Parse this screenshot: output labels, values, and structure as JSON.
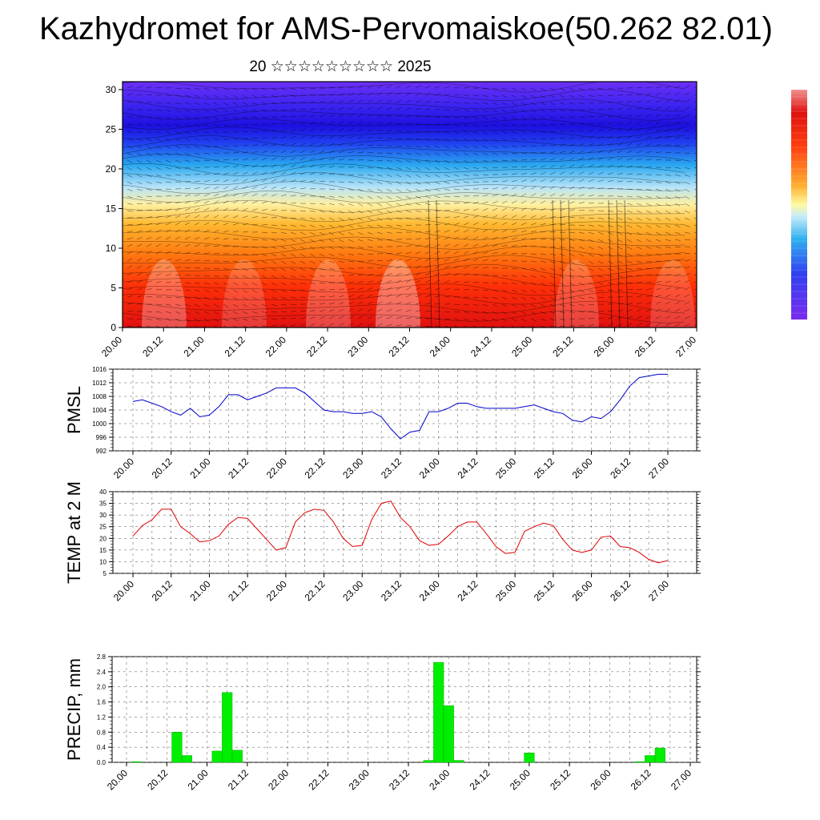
{
  "title": "Kazhydromet for AMS-Pervomaiskoe(50.262 82.01)",
  "subtitle": "20 ☆☆☆☆☆☆☆☆☆ 2025",
  "x_tick_labels": [
    "20.00",
    "20.12",
    "21.00",
    "21.12",
    "22.00",
    "22.12",
    "23.00",
    "23.12",
    "24.00",
    "24.12",
    "25.00",
    "25.12",
    "26.00",
    "26.12",
    "27.00"
  ],
  "chart_data": [
    {
      "type": "heatmap",
      "y_ticks": [
        0,
        5,
        10,
        15,
        20,
        25,
        30
      ],
      "ylim": [
        0,
        31
      ],
      "x_ticks": [
        "20.00",
        "20.12",
        "21.00",
        "21.12",
        "22.00",
        "22.12",
        "23.00",
        "23.12",
        "24.00",
        "24.12",
        "25.00",
        "25.12",
        "26.00",
        "26.12",
        "27.00"
      ],
      "colorbar": "rainbow"
    },
    {
      "type": "line",
      "ylabel": "PMSL",
      "ylim": [
        992,
        1016
      ],
      "y_ticks": [
        992,
        996,
        1000,
        1004,
        1008,
        1012,
        1016
      ],
      "x": [
        0,
        3,
        6,
        9,
        12,
        15,
        18,
        21,
        24,
        27,
        30,
        33,
        36,
        39,
        42,
        45,
        48,
        51,
        54,
        57,
        60,
        63,
        66,
        69,
        72,
        75,
        78,
        81,
        84,
        87,
        90,
        93,
        96,
        99,
        102,
        105,
        108,
        111,
        114,
        117,
        120,
        123,
        126,
        129,
        132,
        135,
        138,
        141,
        144,
        147,
        150,
        153,
        156,
        159,
        162,
        165,
        168
      ],
      "series": [
        {
          "values": [
            1006.5,
            1007,
            1006,
            1005,
            1003.5,
            1002.5,
            1004.5,
            1002,
            1002.5,
            1005,
            1008.5,
            1008.5,
            1007,
            1008,
            1009,
            1010.5,
            1010.5,
            1010.5,
            1009,
            1006.5,
            1004,
            1003.5,
            1003.5,
            1003,
            1003,
            1003.5,
            1002,
            998.5,
            995.5,
            997.5,
            998,
            1003.5,
            1003.5,
            1004.5,
            1006,
            1006,
            1005,
            1004.5,
            1004.5,
            1004.5,
            1004.5,
            1005,
            1005.5,
            1004.5,
            1003.5,
            1003,
            1001,
            1000.5,
            1002,
            1001.5,
            1003.5,
            1007,
            1011,
            1013.5,
            1014,
            1014.5,
            1014.5
          ]
        }
      ]
    },
    {
      "type": "line",
      "ylabel": "TEMP at 2 M",
      "ylim": [
        5,
        40
      ],
      "y_ticks": [
        5,
        10,
        15,
        20,
        25,
        30,
        35,
        40
      ],
      "x": [
        0,
        3,
        6,
        9,
        12,
        15,
        18,
        21,
        24,
        27,
        30,
        33,
        36,
        39,
        42,
        45,
        48,
        51,
        54,
        57,
        60,
        63,
        66,
        69,
        72,
        75,
        78,
        81,
        84,
        87,
        90,
        93,
        96,
        99,
        102,
        105,
        108,
        111,
        114,
        117,
        120,
        123,
        126,
        129,
        132,
        135,
        138,
        141,
        144,
        147,
        150,
        153,
        156,
        159,
        162,
        165,
        168
      ],
      "series": [
        {
          "values": [
            21,
            25.5,
            28,
            32.5,
            32.5,
            25,
            22,
            18.5,
            19,
            21,
            26,
            29,
            28.5,
            24,
            19.5,
            15,
            16,
            27,
            31,
            32.5,
            32,
            27,
            20,
            16.5,
            17,
            28,
            35,
            36,
            29,
            25,
            19,
            17,
            17.5,
            21,
            25,
            27,
            27,
            22,
            16.5,
            13.5,
            14,
            23,
            25,
            26.5,
            25.5,
            19.5,
            15,
            14,
            15,
            20.5,
            21,
            16.5,
            16,
            14,
            11,
            9.5,
            10.5
          ]
        }
      ]
    },
    {
      "type": "bar",
      "ylabel": "PRECIP, mm",
      "ylim": [
        0,
        2.8
      ],
      "y_ticks": [
        "0.0",
        "0.4",
        "0.8",
        "1.2",
        "1.6",
        "2.0",
        "2.4",
        "2.8"
      ],
      "x": [
        3,
        15,
        18,
        27,
        30,
        33,
        90,
        93,
        96,
        99,
        120,
        153,
        156,
        159
      ],
      "series": [
        {
          "values": [
            0.02,
            0.8,
            0.18,
            0.3,
            1.85,
            0.32,
            0.05,
            2.65,
            1.5,
            0.05,
            0.25,
            0.02,
            0.18,
            0.38
          ]
        }
      ]
    }
  ]
}
